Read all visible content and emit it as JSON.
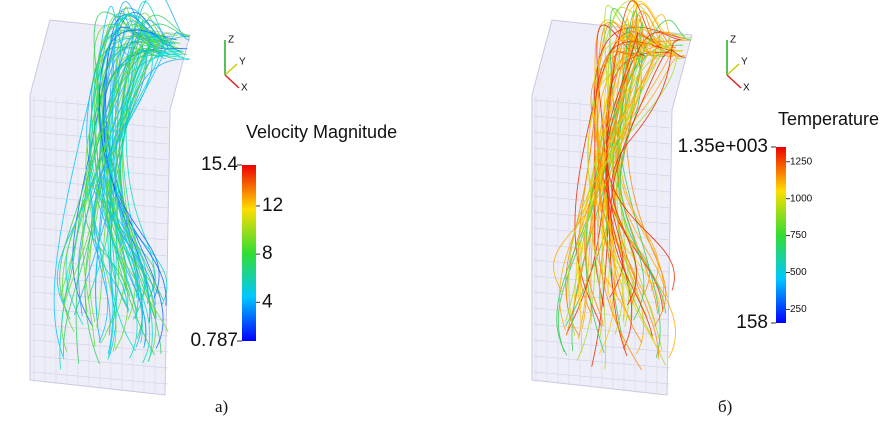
{
  "panels": [
    {
      "caption": "а)",
      "axes": [
        "Z",
        "Y",
        "X"
      ],
      "colorbar": {
        "title": "Velocity Magnitude",
        "range": [
          0.787,
          15.4
        ],
        "end_labels": [
          15.4,
          0.787
        ],
        "ticks": [
          12,
          8,
          4
        ]
      }
    },
    {
      "caption": "б)",
      "axes": [
        "Z",
        "Y",
        "X"
      ],
      "colorbar": {
        "title": "Temperature",
        "range": [
          158,
          1350
        ],
        "end_labels": [
          {
            "value": 1350,
            "label": "1.35e+003"
          },
          158
        ],
        "ticks": [
          1250,
          1000,
          750,
          500,
          250
        ]
      }
    }
  ]
}
